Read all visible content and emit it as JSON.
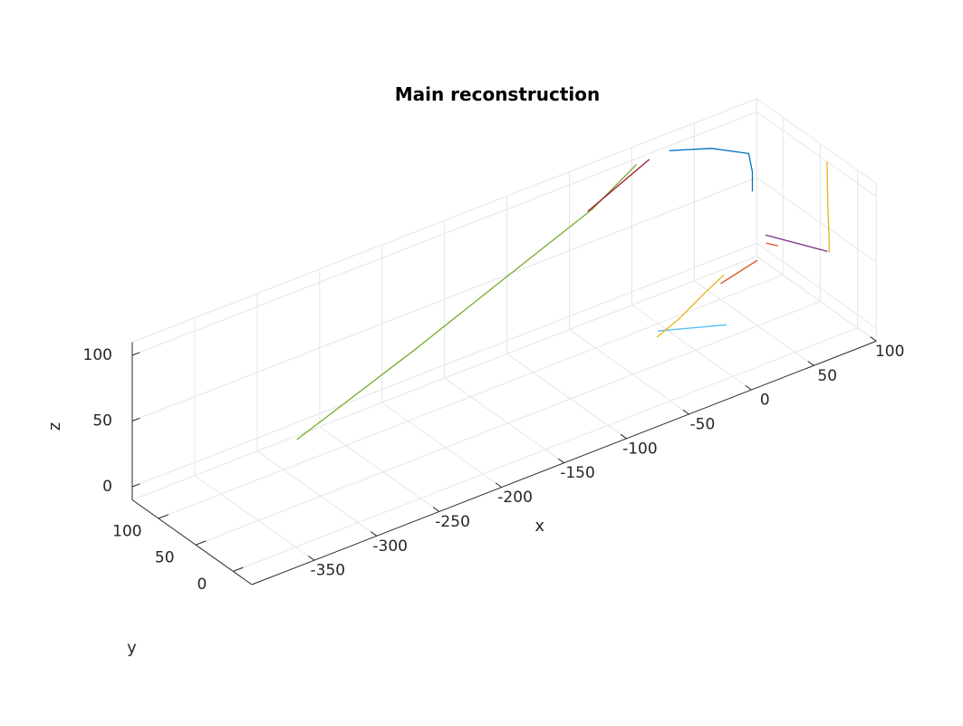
{
  "chart_data": {
    "type": "line",
    "projection": "3d-isometric",
    "title": "Main reconstruction",
    "xlabel": "x",
    "ylabel": "y",
    "zlabel": "z",
    "xlim": [
      -400,
      100
    ],
    "ylim": [
      -25,
      135
    ],
    "zlim": [
      -10,
      110
    ],
    "xticks": [
      -350,
      -300,
      -250,
      -200,
      -150,
      -100,
      -50,
      0,
      50,
      100
    ],
    "yticks": [
      0,
      50,
      100
    ],
    "zticks": [
      0,
      50,
      100
    ],
    "grid": true,
    "colors": {
      "grid": "#e6e6e6",
      "axis": "#262626",
      "background": "#ffffff"
    },
    "series": [
      {
        "color": "#77ac30",
        "points": [
          [
            -340,
            15,
            62
          ],
          [
            -230,
            40,
            80
          ],
          [
            -150,
            62,
            92
          ],
          [
            -60,
            88,
            104
          ],
          [
            -10,
            112,
            110
          ]
        ]
      },
      {
        "color": "#a2142f",
        "points": [
          [
            -55,
            102,
            95
          ],
          [
            5,
            120,
            105
          ]
        ]
      },
      {
        "color": "#0072bd",
        "points": [
          [
            20,
            118,
            107
          ],
          [
            50,
            112,
            100
          ],
          [
            75,
            104,
            90
          ],
          [
            78,
            104,
            75
          ],
          [
            78,
            104,
            60
          ]
        ]
      },
      {
        "color": "#7e2f8e",
        "points": [
          [
            55,
            48,
            58
          ],
          [
            98,
            37,
            34
          ]
        ]
      },
      {
        "color": "#d95319",
        "points": [
          [
            59,
            54,
            48
          ],
          [
            68,
            53,
            43
          ]
        ]
      },
      {
        "color": "#edb120",
        "points": [
          [
            100,
            41,
            100
          ],
          [
            100,
            40,
            70
          ],
          [
            100,
            38,
            40
          ],
          [
            100,
            38,
            32
          ]
        ]
      },
      {
        "color": "#4dbeee",
        "points": [
          [
            -15,
            75,
            0
          ],
          [
            25,
            50,
            0
          ]
        ]
      },
      {
        "color": "#edb120",
        "points": [
          [
            -20,
            68,
            0
          ],
          [
            5,
            80,
            0
          ],
          [
            35,
            98,
            0
          ],
          [
            60,
            112,
            0
          ]
        ]
      },
      {
        "color": "#d95319",
        "points": [
          [
            52,
            103,
            0
          ],
          [
            88,
            114,
            0
          ]
        ]
      }
    ]
  }
}
